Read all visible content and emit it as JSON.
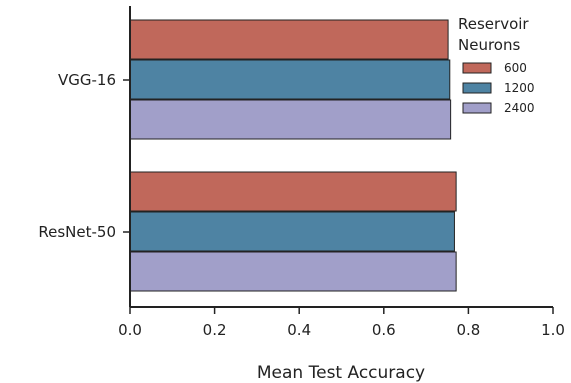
{
  "chart_data": {
    "type": "bar",
    "orientation": "horizontal",
    "categories": [
      "VGG-16",
      "ResNet-50"
    ],
    "series": [
      {
        "name": "600",
        "color": "#c0685b",
        "values": [
          0.752,
          0.771
        ]
      },
      {
        "name": "1200",
        "color": "#4e83a3",
        "values": [
          0.756,
          0.767
        ]
      },
      {
        "name": "2400",
        "color": "#a19fc9",
        "values": [
          0.758,
          0.771
        ]
      }
    ],
    "title": "",
    "xlabel": "Mean Test Accuracy",
    "ylabel": "",
    "xlim": [
      0.0,
      1.0
    ],
    "xticks": [
      "0.0",
      "0.2",
      "0.4",
      "0.6",
      "0.8",
      "1.0"
    ],
    "grid": false,
    "legend": {
      "title_line1": "Reservoir",
      "title_line2": "Neurons",
      "position": "top-right"
    }
  }
}
